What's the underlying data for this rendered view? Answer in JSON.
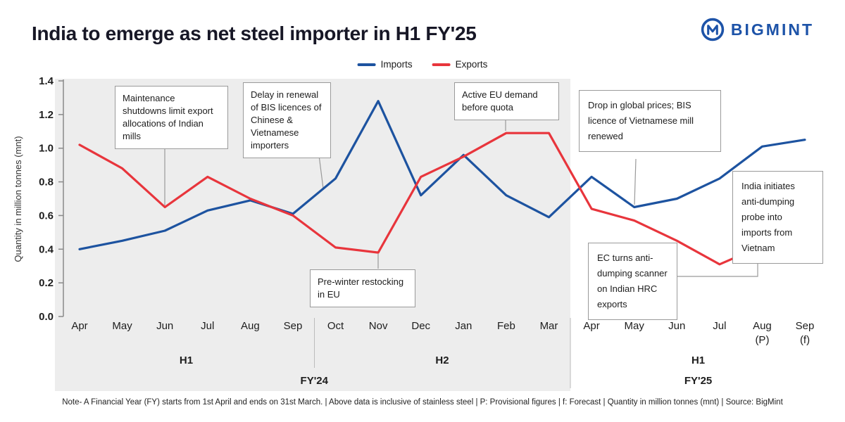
{
  "header": {
    "title": "India to emerge as net steel importer in H1 FY'25",
    "logo_text": "BIGMINT"
  },
  "colors": {
    "imports": "#1d53a0",
    "exports": "#e8353c",
    "brand": "#1d53a8",
    "panel_gray": "#ededed"
  },
  "chart_data": {
    "type": "line",
    "title": "India to emerge as net steel importer in H1 FY'25",
    "ylabel": "Quantity in million tonnes (mnt)",
    "ylim": [
      0,
      1.4
    ],
    "yticks": [
      0,
      0.2,
      0.4,
      0.6,
      0.8,
      1.0,
      1.2,
      1.4
    ],
    "grid": false,
    "legend_position": "top-center",
    "categories": [
      [
        "Apr"
      ],
      [
        "May"
      ],
      [
        "Jun"
      ],
      [
        "Jul"
      ],
      [
        "Aug"
      ],
      [
        "Sep"
      ],
      [
        "Oct"
      ],
      [
        "Nov"
      ],
      [
        "Dec"
      ],
      [
        "Jan"
      ],
      [
        "Feb"
      ],
      [
        "Mar"
      ],
      [
        "Apr"
      ],
      [
        "May"
      ],
      [
        "Jun"
      ],
      [
        "Jul"
      ],
      [
        "Aug",
        "(P)"
      ],
      [
        "Sep",
        "(f)"
      ]
    ],
    "series": [
      {
        "name": "Imports",
        "color": "#1d53a0",
        "values": [
          0.4,
          0.45,
          0.51,
          0.63,
          0.69,
          0.61,
          0.82,
          1.28,
          0.72,
          0.96,
          0.72,
          0.59,
          0.83,
          0.65,
          0.7,
          0.82,
          1.01,
          1.05
        ]
      },
      {
        "name": "Exports",
        "color": "#e8353c",
        "values": [
          1.02,
          0.88,
          0.65,
          0.83,
          0.7,
          0.6,
          0.41,
          0.38,
          0.83,
          0.95,
          1.09,
          1.09,
          0.64,
          0.57,
          0.45,
          0.31,
          0.42,
          0.41
        ]
      }
    ],
    "period_groups": [
      {
        "label": "H1",
        "span": [
          0,
          5
        ]
      },
      {
        "label": "H2",
        "span": [
          6,
          11
        ]
      },
      {
        "label": "H1",
        "span": [
          12,
          17
        ]
      }
    ],
    "year_groups": [
      {
        "label": "FY'24",
        "span": [
          0,
          11
        ]
      },
      {
        "label": "FY'25",
        "span": [
          12,
          17
        ]
      }
    ],
    "annotations": [
      {
        "text": "Maintenance shutdowns limit export allocations of Indian mills"
      },
      {
        "text": "Delay in renewal of BIS licences of Chinese & Vietnamese importers"
      },
      {
        "text": "Active EU demand before quota"
      },
      {
        "text": "Drop in global prices; BIS licence of Vietnamese mill renewed"
      },
      {
        "text": "India initiates anti-dumping probe into imports from Vietnam"
      },
      {
        "text": "EC turns anti-dumping scanner on Indian HRC exports"
      },
      {
        "text": "Pre-winter restocking in EU"
      }
    ]
  },
  "footnote": "Note- A Financial Year (FY) starts from 1st April and ends on 31st March. | Above data is inclusive of stainless steel | P: Provisional figures | f: Forecast | Quantity in million tonnes (mnt) | Source: BigMint"
}
